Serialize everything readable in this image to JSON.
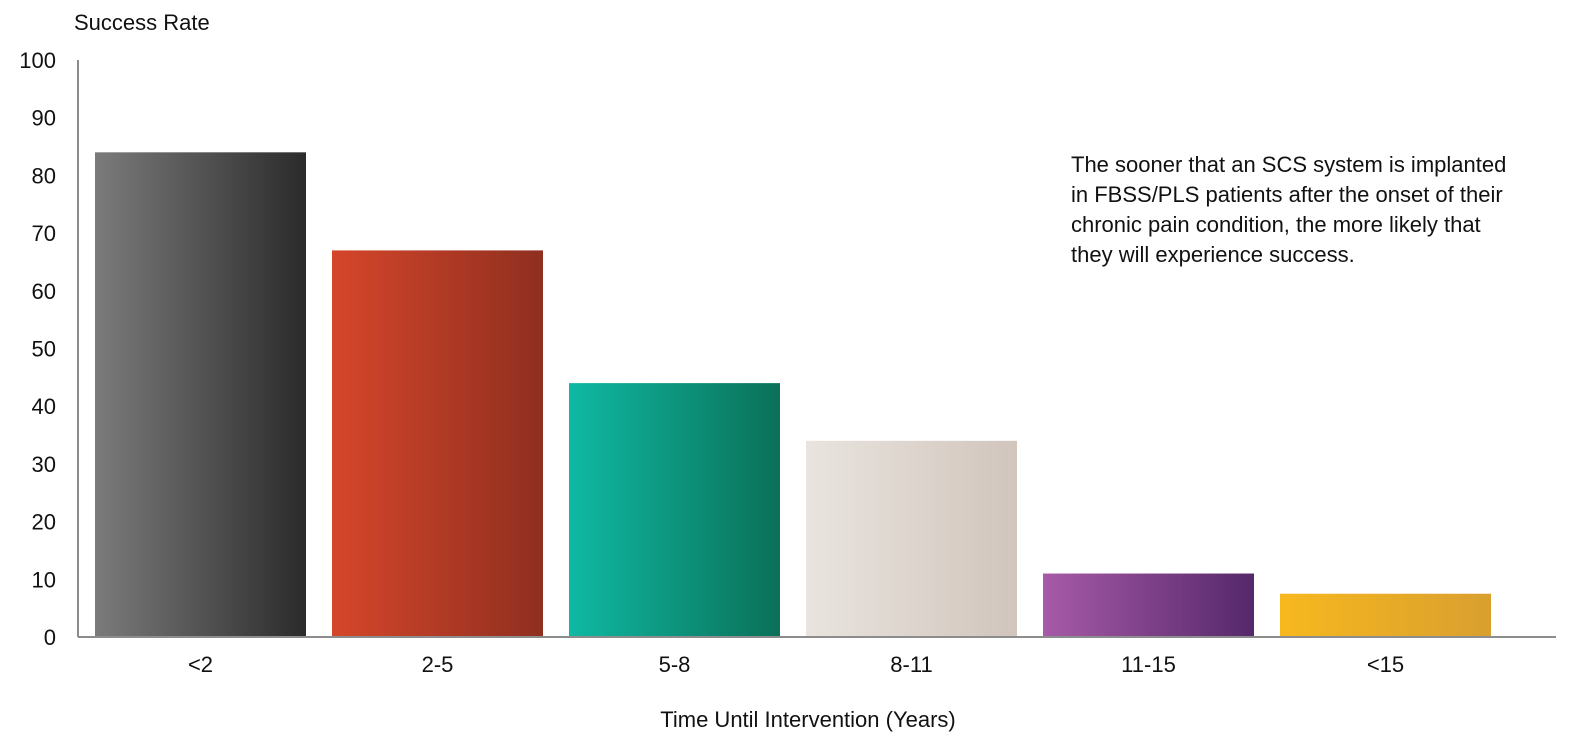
{
  "chart_data": {
    "type": "bar",
    "title": "",
    "ylabel": "Success Rate",
    "xlabel": "Time Until Intervention (Years)",
    "categories": [
      "<2",
      "2-5",
      "5-8",
      "8-11",
      "11-15",
      "<15"
    ],
    "values": [
      84,
      67,
      44,
      34,
      11,
      7.5
    ],
    "ylim": [
      0,
      100
    ],
    "yticks": [
      0,
      10,
      20,
      30,
      40,
      50,
      60,
      70,
      80,
      90,
      100
    ],
    "grid": false,
    "legend": "none",
    "bar_colors": [
      [
        "#7b7b7b",
        "#2b2b2b"
      ],
      [
        "#d5462a",
        "#8f2f20"
      ],
      [
        "#0fb9a3",
        "#0b7058"
      ],
      [
        "#e9e4df",
        "#d1c5bc"
      ],
      [
        "#a75aa8",
        "#55286a"
      ],
      [
        "#f7b81e",
        "#d99f2f"
      ]
    ],
    "axis_color": "#8c8c8c",
    "annotation": "The sooner that an SCS system is implanted\nin FBSS/PLS patients after the onset of their\nchronic pain condition, the more likely that\nthey will experience success."
  }
}
